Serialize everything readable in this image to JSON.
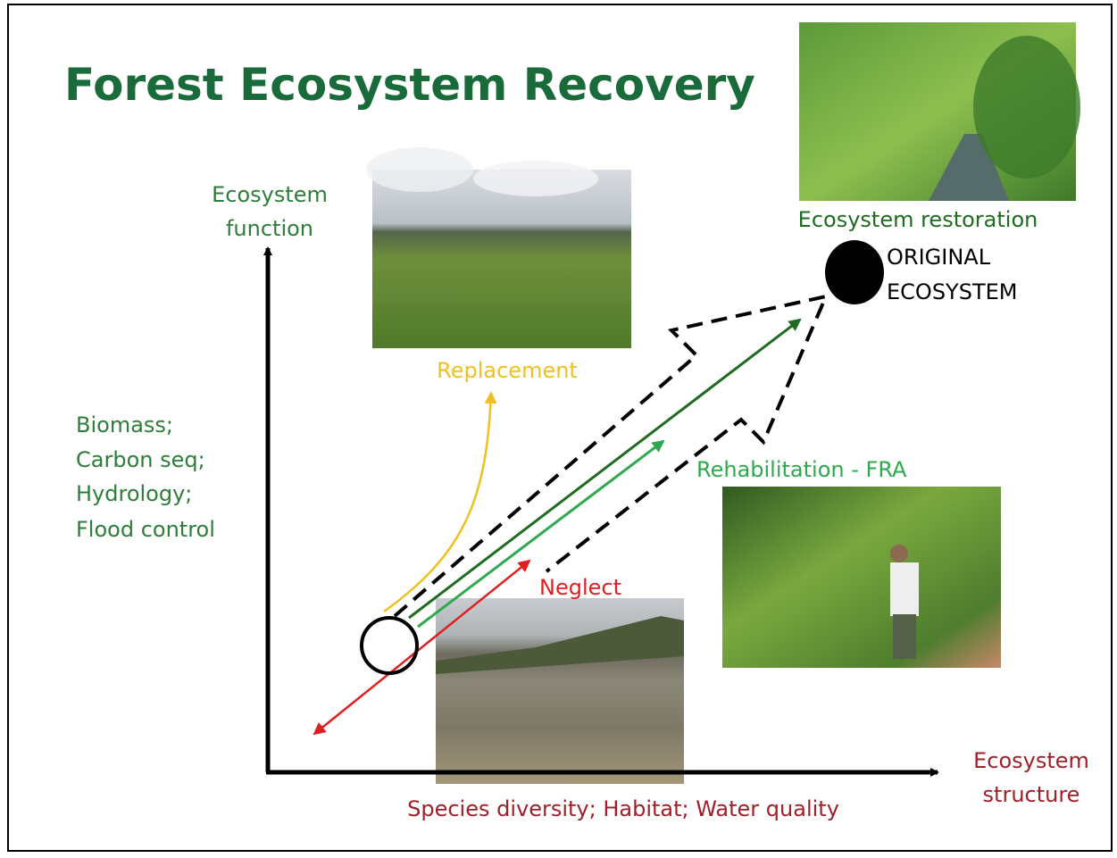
{
  "title": "Forest Ecosystem Recovery",
  "y_axis": {
    "label": [
      "Ecosystem",
      "function"
    ],
    "examples": [
      "Biomass;",
      "Carbon seq;",
      "Hydrology;",
      "Flood control"
    ]
  },
  "x_axis": {
    "label": [
      "Ecosystem",
      "structure"
    ],
    "examples": "Species diversity; Habitat; Water quality"
  },
  "original": [
    "ORIGINAL",
    "ECOSYSTEM"
  ],
  "paths": {
    "restoration": "Ecosystem restoration",
    "replacement": "Replacement",
    "rehabilitation": "Rehabilitation - FRA",
    "neglect": "Neglect"
  }
}
